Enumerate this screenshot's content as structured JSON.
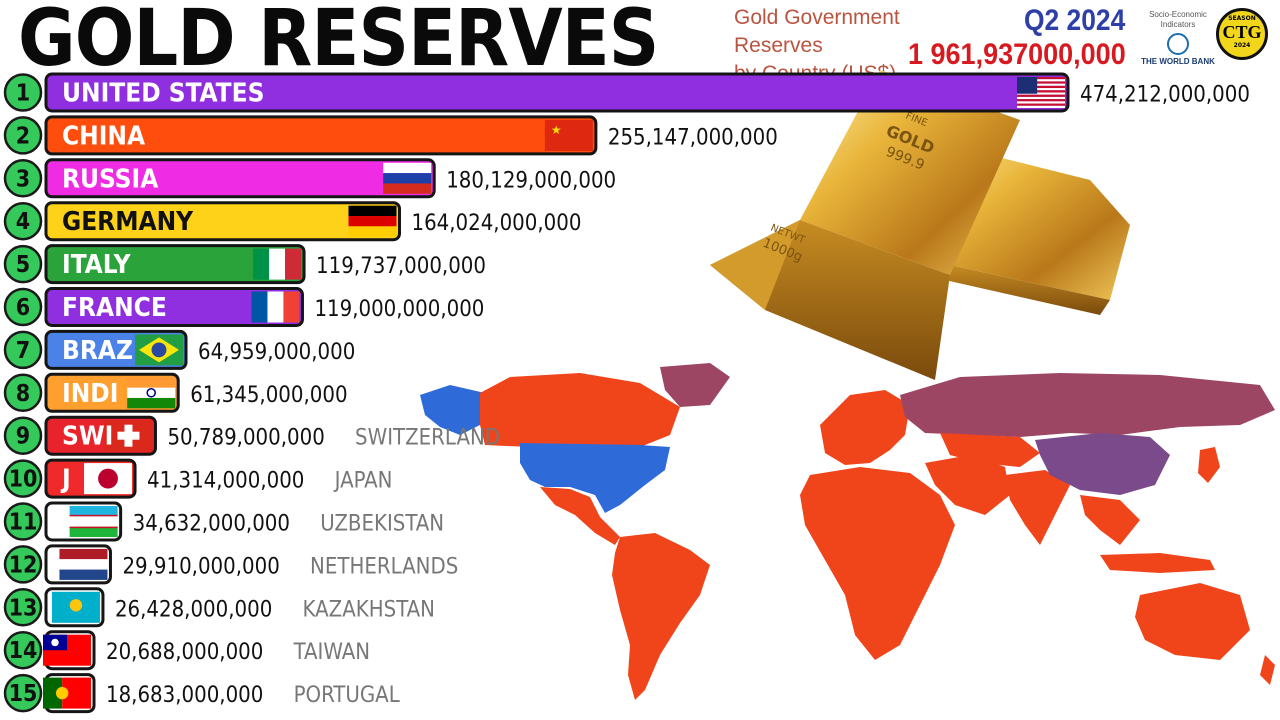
{
  "header": {
    "title": "GOLD RESERVES",
    "subtitle_line1": "Gold Government Reserves",
    "subtitle_line2": "by Country (US$)",
    "period": "Q2 2024",
    "total": "1 961,937000,000"
  },
  "source": {
    "line1": "Socio-Economic",
    "line2": "Indicators",
    "name": "THE WORLD BANK"
  },
  "channel_badge": {
    "top": "SEASON",
    "logo": "CTG",
    "bottom": "2024"
  },
  "chart_data": {
    "type": "bar",
    "orientation": "horizontal",
    "unit": "US$",
    "ranks": [
      "1",
      "2",
      "3",
      "4",
      "5",
      "6",
      "7",
      "8",
      "9",
      "10",
      "11",
      "12",
      "13",
      "14",
      "15"
    ],
    "categories": [
      "UNITED STATES",
      "CHINA",
      "RUSSIA",
      "GERMANY",
      "ITALY",
      "FRANCE",
      "BRAZIL",
      "INDIA",
      "SWITZERLAND",
      "JAPAN",
      "UZBEKISTAN",
      "NETHERLANDS",
      "KAZAKHSTAN",
      "TAIWAN",
      "PORTUGAL"
    ],
    "bar_labels": [
      "UNITED STATES",
      "CHINA",
      "RUSSIA",
      "GERMANY",
      "ITALY",
      "FRANCE",
      "BRAZ",
      "INDI",
      "SWI",
      "J",
      "",
      "",
      "",
      "",
      ""
    ],
    "side_labels": [
      "",
      "",
      "",
      "",
      "",
      "",
      "",
      "",
      "SWITZERLAND",
      "JAPAN",
      "UZBEKISTAN",
      "NETHERLANDS",
      "KAZAKHSTAN",
      "TAIWAN",
      "PORTUGAL"
    ],
    "values": [
      474212000000,
      255147000000,
      180129000000,
      164024000000,
      119737000000,
      119000000000,
      64959000000,
      61345000000,
      50789000000,
      41314000000,
      34632000000,
      29910000000,
      26428000000,
      20688000000,
      18683000000
    ],
    "value_labels": [
      "474,212,000,000",
      "255,147,000,000",
      "180,129,000,000",
      "164,024,000,000",
      "119,737,000,000",
      "119,000,000,000",
      "64,959,000,000",
      "61,345,000,000",
      "50,789,000,000",
      "41,314,000,000",
      "34,632,000,000",
      "29,910,000,000",
      "26,428,000,000",
      "20,688,000,000",
      "18,683,000,000"
    ],
    "colors": [
      "#8f2fe0",
      "#ff4d0d",
      "#ef2be4",
      "#ffd21a",
      "#29a33a",
      "#8f2fe0",
      "#4b82e8",
      "#ff9f2e",
      "#e8232c",
      "#f02a2a",
      "#ffffff",
      "#ffffff",
      "#ffffff",
      "#ffffff",
      "#ffffff"
    ],
    "flags": [
      "us-flag-icon",
      "cn-flag-icon",
      "ru-flag-icon",
      "de-flag-icon",
      "it-flag-icon",
      "fr-flag-icon",
      "br-flag-icon",
      "in-flag-icon",
      "ch-flag-icon",
      "jp-flag-icon",
      "uz-flag-icon",
      "nl-flag-icon",
      "kz-flag-icon",
      "tw-flag-icon",
      "pt-flag-icon"
    ],
    "rank_badge_color": "#34c95a"
  },
  "decor": {
    "gold_bars_text": [
      "FINE",
      "GOLD",
      "999.9",
      "NETWT",
      "1000g"
    ]
  }
}
